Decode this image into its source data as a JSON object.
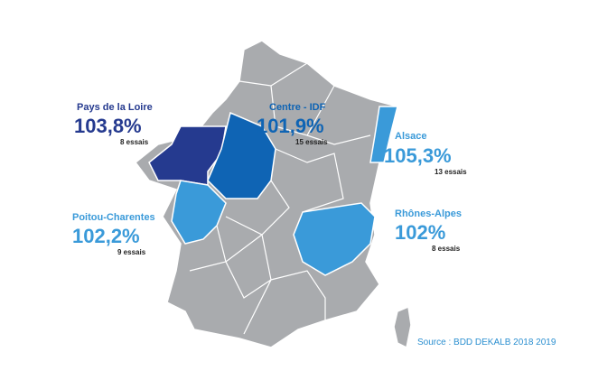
{
  "regions": [
    {
      "name": "Pays de la Loire",
      "value": "103,8%",
      "trials": "8 essais",
      "color": "#253a8f"
    },
    {
      "name": "Centre - IDF",
      "value": "101,9%",
      "trials": "15 essais",
      "color": "#0f64b4"
    },
    {
      "name": "Alsace",
      "value": "105,3%",
      "trials": "13 essais",
      "color": "#3a9ad9"
    },
    {
      "name": "Poitou-Charentes",
      "value": "102,2%",
      "trials": "9 essais",
      "color": "#3a9ad9"
    },
    {
      "name": "Rhônes-Alpes",
      "value": "102%",
      "trials": "8 essais",
      "color": "#3a9ad9"
    }
  ],
  "source": "Source : BDD DEKALB 2018 2019"
}
